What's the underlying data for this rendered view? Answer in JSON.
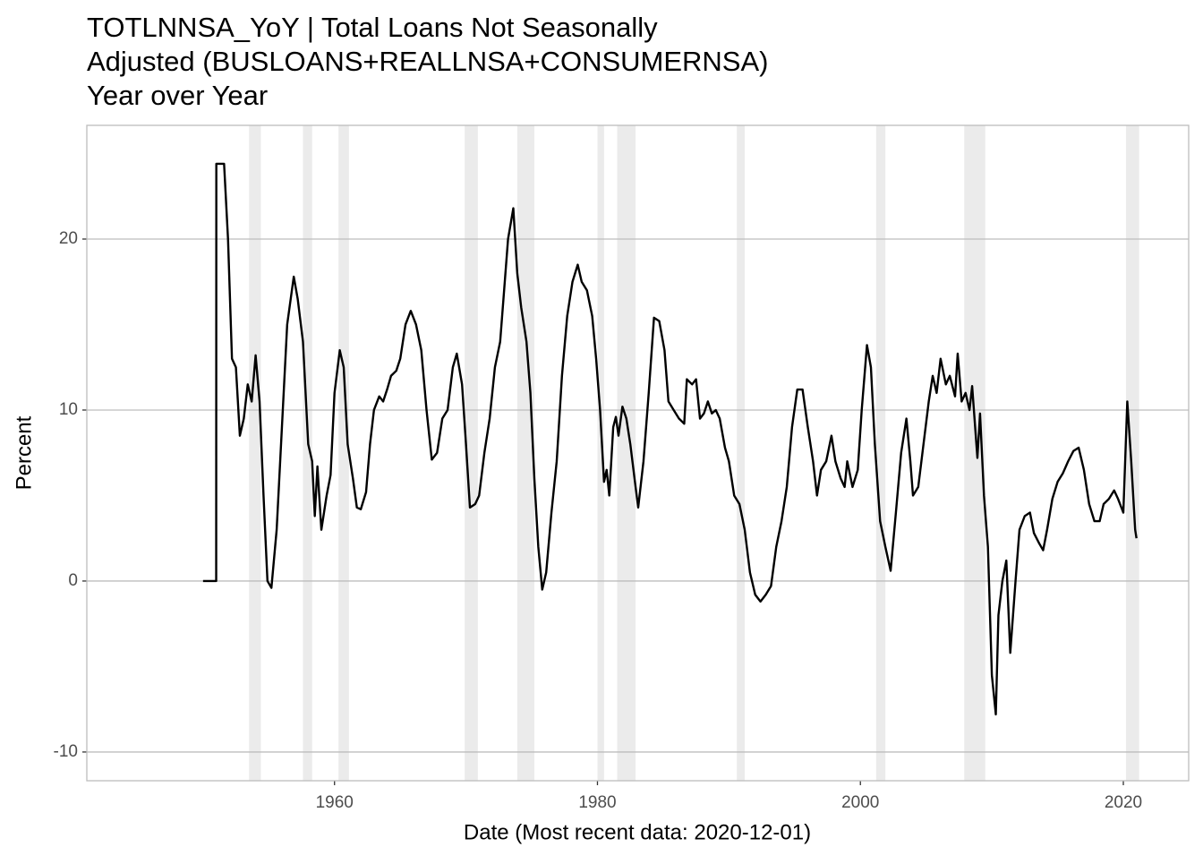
{
  "chart_data": {
    "type": "line",
    "title": [
      "TOTLNNSA_YoY | Total Loans Not Seasonally",
      "Adjusted (BUSLOANS+REALLNSA+CONSUMERNSA)",
      "Year over Year"
    ],
    "x_label": "Date (Most recent data: 2020-12-01)",
    "y_label": "Percent",
    "color": "#000000",
    "shade_color": "#ebebeb",
    "shaded_periods": [
      [
        1953.5,
        1954.4
      ],
      [
        1957.6,
        1958.3
      ],
      [
        1960.3,
        1961.1
      ],
      [
        1969.9,
        1970.9
      ],
      [
        1973.9,
        1975.2
      ],
      [
        1980.0,
        1980.5
      ],
      [
        1981.5,
        1982.9
      ],
      [
        1990.6,
        1991.2
      ],
      [
        2001.2,
        2001.9
      ],
      [
        2007.9,
        2009.5
      ],
      [
        2020.2,
        2021.2
      ]
    ],
    "xlim": [
      1941.16,
      2024.97
    ],
    "xticks": [
      1960,
      1980,
      2000,
      2020
    ],
    "ylim": [
      -11.68,
      26.65
    ],
    "yticks": [
      -10,
      0,
      10,
      20
    ],
    "grid": true,
    "x": [
      1950.0,
      1951.0,
      1951.01,
      1951.6,
      1951.9,
      1952.2,
      1952.5,
      1952.8,
      1953.1,
      1953.4,
      1953.7,
      1954.0,
      1954.3,
      1954.6,
      1954.9,
      1955.2,
      1955.6,
      1956.0,
      1956.4,
      1956.9,
      1957.2,
      1957.6,
      1958.0,
      1958.3,
      1958.5,
      1958.7,
      1959.0,
      1959.4,
      1959.7,
      1960.0,
      1960.4,
      1960.7,
      1961.0,
      1961.4,
      1961.7,
      1962.0,
      1962.4,
      1962.7,
      1963.0,
      1963.4,
      1963.7,
      1964.0,
      1964.3,
      1964.7,
      1965.0,
      1965.4,
      1965.8,
      1966.2,
      1966.6,
      1967.0,
      1967.4,
      1967.8,
      1968.2,
      1968.6,
      1969.0,
      1969.3,
      1969.7,
      1970.0,
      1970.3,
      1970.7,
      1971.0,
      1971.4,
      1971.8,
      1972.2,
      1972.6,
      1972.9,
      1973.2,
      1973.6,
      1973.9,
      1974.2,
      1974.6,
      1974.9,
      1975.2,
      1975.5,
      1975.8,
      1976.1,
      1976.5,
      1976.9,
      1977.3,
      1977.7,
      1978.1,
      1978.5,
      1978.8,
      1979.2,
      1979.6,
      1979.9,
      1980.2,
      1980.5,
      1980.7,
      1980.9,
      1981.2,
      1981.4,
      1981.6,
      1981.9,
      1982.2,
      1982.5,
      1982.9,
      1983.1,
      1983.5,
      1983.9,
      1984.3,
      1984.7,
      1985.1,
      1985.4,
      1985.8,
      1986.2,
      1986.6,
      1986.8,
      1987.2,
      1987.5,
      1987.8,
      1988.1,
      1988.4,
      1988.7,
      1989.0,
      1989.3,
      1989.7,
      1990.0,
      1990.4,
      1990.8,
      1991.2,
      1991.6,
      1992.0,
      1992.4,
      1992.8,
      1993.2,
      1993.6,
      1994.0,
      1994.4,
      1994.8,
      1995.2,
      1995.6,
      1996.0,
      1996.4,
      1996.7,
      1997.0,
      1997.4,
      1997.8,
      1998.1,
      1998.5,
      1998.8,
      1999.0,
      1999.4,
      1999.8,
      2000.1,
      2000.5,
      2000.8,
      2001.1,
      2001.5,
      2001.9,
      2002.3,
      2002.7,
      2003.1,
      2003.5,
      2003.8,
      2004.0,
      2004.4,
      2004.8,
      2005.2,
      2005.5,
      2005.8,
      2006.1,
      2006.5,
      2006.8,
      2007.2,
      2007.4,
      2007.7,
      2008.0,
      2008.3,
      2008.5,
      2008.9,
      2009.1,
      2009.4,
      2009.7,
      2010.0,
      2010.3,
      2010.5,
      2010.8,
      2011.1,
      2011.4,
      2011.8,
      2012.1,
      2012.5,
      2012.9,
      2013.2,
      2013.6,
      2013.9,
      2014.2,
      2014.6,
      2015.0,
      2015.4,
      2015.8,
      2016.2,
      2016.6,
      2017.0,
      2017.4,
      2017.8,
      2018.2,
      2018.5,
      2018.9,
      2019.3,
      2019.6,
      2020.0,
      2020.3,
      2020.6,
      2020.9,
      2021.0
    ],
    "values": [
      0,
      0,
      24.4,
      24.4,
      20,
      13,
      12.5,
      8.5,
      9.5,
      11.5,
      10.5,
      13.2,
      10.5,
      5,
      0,
      -0.4,
      3,
      9,
      15,
      17.8,
      16.5,
      14,
      8,
      7,
      3.8,
      6.7,
      3,
      5,
      6.2,
      11,
      13.5,
      12.5,
      8,
      6,
      4.3,
      4.2,
      5.2,
      8,
      10,
      10.8,
      10.5,
      11.2,
      12,
      12.3,
      13,
      15,
      15.8,
      15,
      13.5,
      10,
      7.1,
      7.5,
      9.5,
      10,
      12.5,
      13.3,
      11.5,
      8,
      4.3,
      4.5,
      5,
      7.5,
      9.5,
      12.5,
      14,
      17,
      20,
      21.8,
      18,
      16,
      14,
      11,
      6,
      2,
      -0.5,
      0.5,
      4,
      7,
      12,
      15.5,
      17.5,
      18.5,
      17.5,
      17,
      15.5,
      13,
      10,
      5.8,
      6.5,
      5,
      9,
      9.6,
      8.5,
      10.2,
      9.5,
      8,
      5.5,
      4.3,
      7,
      11,
      15.4,
      15.2,
      13.5,
      10.5,
      10,
      9.5,
      9.2,
      11.8,
      11.5,
      11.8,
      9.5,
      9.8,
      10.5,
      9.8,
      10,
      9.5,
      7.8,
      7,
      5,
      4.5,
      3,
      0.5,
      -0.8,
      -1.2,
      -0.8,
      -0.3,
      2,
      3.5,
      5.5,
      9,
      11.2,
      11.2,
      9,
      7,
      5,
      6.5,
      7,
      8.5,
      7,
      6,
      5.5,
      7,
      5.5,
      6.5,
      10,
      13.8,
      12.5,
      8,
      3.5,
      2,
      0.6,
      4,
      7.5,
      9.5,
      7,
      5,
      5.5,
      8,
      10.5,
      12,
      11,
      13,
      11.5,
      12,
      10.8,
      13.3,
      10.5,
      11,
      10,
      11.4,
      7.2,
      9.8,
      5,
      2,
      -5.5,
      -7.8,
      -2,
      0,
      1.2,
      -4.2,
      0,
      3,
      3.8,
      4,
      2.8,
      2.2,
      1.8,
      3,
      4.8,
      5.8,
      6.3,
      7,
      7.6,
      7.8,
      6.5,
      4.5,
      3.5,
      3.5,
      4.5,
      4.8,
      5.3,
      4.8,
      4,
      10.5,
      7,
      3,
      2.5
    ]
  }
}
